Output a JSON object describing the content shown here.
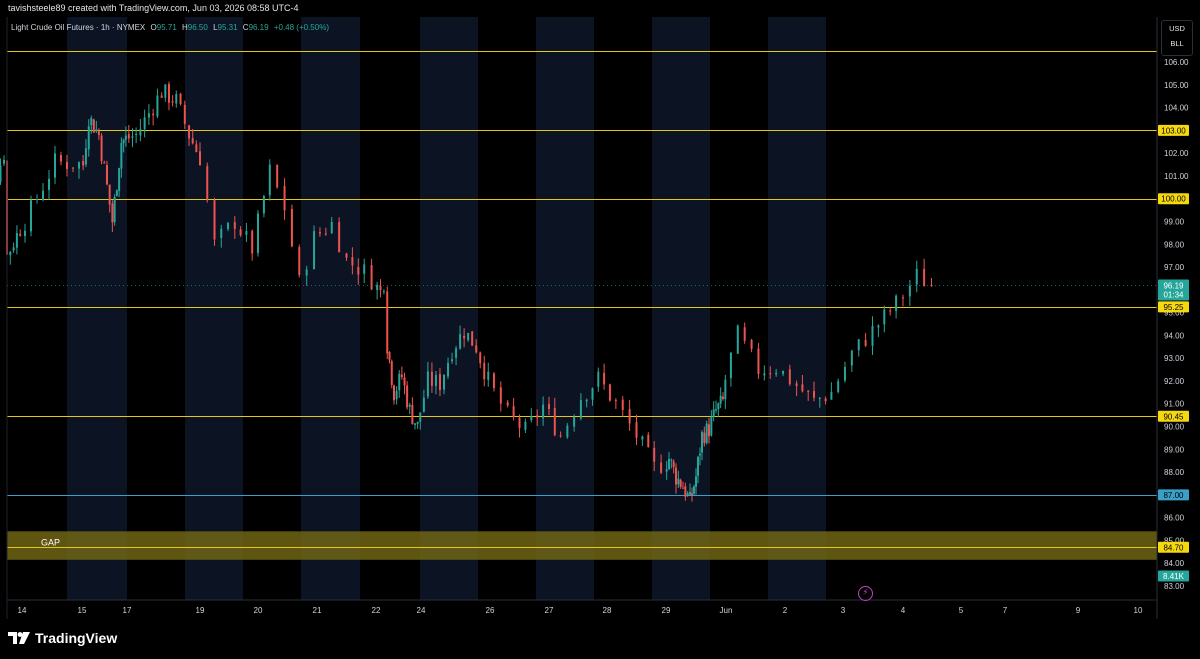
{
  "header": {
    "credit": "tavishsteele89 created with TradingView.com, Jun 03, 2026 08:58 UTC-4"
  },
  "legend": {
    "symbol": "Light Crude Oil Futures · 1h · NYMEX",
    "open_key": "O",
    "open": "95.71",
    "high_key": "H",
    "high": "96.50",
    "low_key": "L",
    "low": "95.31",
    "close_key": "C",
    "close": "96.19",
    "change": "+0.48 (+0.50%)"
  },
  "currency": {
    "line1": "USD",
    "line2": "BLL"
  },
  "footer": {
    "brand": "TradingView"
  },
  "icons": {
    "bolt": "lightning-bolt-icon",
    "logo": "tradingview-logo-icon"
  },
  "colors": {
    "background": "#000000",
    "band": "#0c1424",
    "up": "#26a69a",
    "down": "#ef5350",
    "level_line": "#e6c619",
    "level_label_bg": "#f5d80f",
    "blue_level": "#3aa0c8",
    "gap_zone": "#6e6414",
    "price_label_bg": "#26a69a"
  },
  "chart_data": {
    "type": "candlestick",
    "ylim": [
      82.5,
      106.8
    ],
    "y_ticks": [
      "83.00",
      "84.00",
      "85.00",
      "86.00",
      "87.00",
      "88.00",
      "89.00",
      "90.00",
      "91.00",
      "92.00",
      "93.00",
      "94.00",
      "95.00",
      "96.00",
      "97.00",
      "98.00",
      "99.00",
      "100.00",
      "101.00",
      "102.00",
      "103.00",
      "104.00",
      "105.00",
      "106.00"
    ],
    "x_ticks": [
      "14",
      "15",
      "17",
      "19",
      "20",
      "21",
      "22",
      "24",
      "26",
      "27",
      "28",
      "29",
      "Jun",
      "2",
      "3",
      "4",
      "5",
      "7",
      "9",
      "10"
    ],
    "levels": [
      {
        "value": 106.5,
        "color": "yellow",
        "label": ""
      },
      {
        "value": 103.0,
        "color": "yellow",
        "label": "103.00"
      },
      {
        "value": 100.0,
        "color": "yellow",
        "label": "100.00"
      },
      {
        "value": 95.25,
        "color": "yellow",
        "label": "95.25"
      },
      {
        "value": 90.45,
        "color": "yellow",
        "label": "90.45"
      },
      {
        "value": 87.0,
        "color": "blue",
        "label": "87.00"
      },
      {
        "value": 84.7,
        "color": "yellow",
        "label": "84.70"
      }
    ],
    "zones": [
      {
        "label": "GAP",
        "from": 84.15,
        "to": 85.4
      }
    ],
    "current_price": {
      "price": "96.19",
      "countdown": "01:34",
      "value": 96.19
    },
    "volume_label": "8.41K",
    "path": [
      [
        14,
        100.9
      ],
      [
        14.2,
        101.8
      ],
      [
        14.6,
        100.6
      ],
      [
        14.95,
        102.0
      ],
      [
        15.05,
        97.5
      ],
      [
        15.6,
        99.0
      ],
      [
        16.1,
        101.6
      ],
      [
        16.6,
        101.5
      ],
      [
        16.85,
        103.6
      ],
      [
        17.3,
        102.8
      ],
      [
        17.9,
        99.0
      ],
      [
        18.3,
        102.5
      ],
      [
        18.8,
        102.8
      ],
      [
        19.5,
        104.7
      ],
      [
        19.9,
        104.3
      ],
      [
        20.25,
        102.8
      ],
      [
        20.55,
        101.8
      ],
      [
        20.8,
        98.0
      ],
      [
        21.15,
        99.0
      ],
      [
        21.45,
        97.8
      ],
      [
        21.75,
        101.2
      ],
      [
        22.0,
        99.6
      ],
      [
        22.25,
        96.3
      ],
      [
        22.5,
        98.3
      ],
      [
        22.8,
        98.9
      ],
      [
        23.05,
        97.3
      ],
      [
        23.35,
        96.8
      ],
      [
        23.6,
        96.1
      ],
      [
        23.75,
        95.9
      ],
      [
        23.9,
        96.4
      ],
      [
        24.05,
        93.6
      ],
      [
        24.35,
        91.5
      ],
      [
        24.7,
        92.2
      ],
      [
        25.05,
        90.7
      ],
      [
        25.4,
        90.0
      ],
      [
        25.75,
        92.0
      ],
      [
        26.1,
        91.9
      ],
      [
        26.45,
        93.4
      ],
      [
        26.8,
        94.2
      ],
      [
        27.15,
        93.5
      ],
      [
        27.5,
        92.0
      ],
      [
        27.85,
        90.5
      ],
      [
        28.15,
        89.8
      ],
      [
        28.45,
        90.9
      ],
      [
        28.75,
        89.6
      ],
      [
        29.1,
        91.3
      ],
      [
        29.4,
        92.1
      ],
      [
        29.7,
        91.0
      ],
      [
        30.05,
        89.6
      ],
      [
        30.35,
        88.2
      ],
      [
        30.7,
        88.6
      ],
      [
        31.05,
        87.8
      ],
      [
        31.4,
        87.4
      ],
      [
        31.75,
        86.7
      ],
      [
        32.05,
        87.8
      ],
      [
        32.35,
        89.6
      ],
      [
        32.7,
        89.9
      ],
      [
        33.05,
        90.7
      ],
      [
        33.4,
        91.1
      ],
      [
        33.75,
        94.0
      ],
      [
        34.1,
        92.5
      ],
      [
        34.4,
        92.6
      ],
      [
        34.75,
        91.8
      ],
      [
        35.05,
        91.1
      ],
      [
        35.35,
        91.5
      ],
      [
        35.7,
        93.2
      ],
      [
        36.05,
        94.2
      ],
      [
        36.45,
        95.4
      ],
      [
        36.8,
        96.6
      ],
      [
        37.05,
        96.2
      ]
    ],
    "x_positions": {
      "14": 22,
      "15": 82,
      "17": 127,
      "19": 200,
      "20": 258,
      "21": 317,
      "22": 376,
      "24": 421,
      "26": 490,
      "27": 549,
      "28": 607,
      "29": 666,
      "Jun": 726,
      "2": 785,
      "3": 843,
      "4": 903,
      "5": 961,
      "7": 1005,
      "9": 1078,
      "10": 1138
    }
  }
}
